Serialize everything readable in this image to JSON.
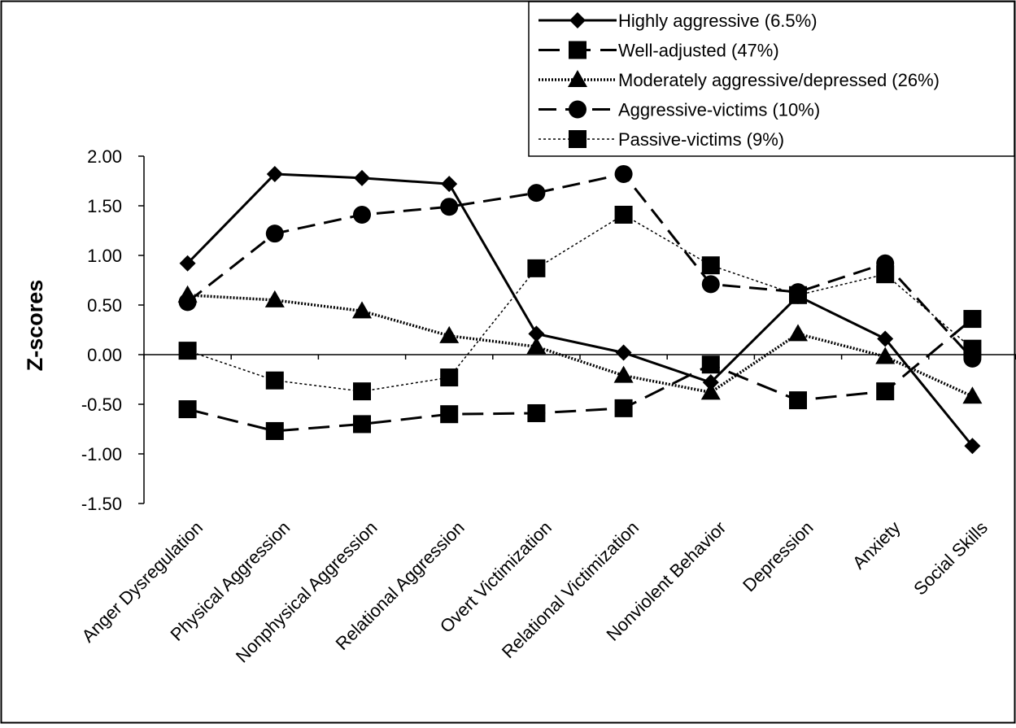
{
  "chart_data": {
    "type": "line",
    "title": "",
    "xlabel": "",
    "ylabel": "Z-scores",
    "ylim": [
      -1.5,
      2.0
    ],
    "y_ticks": [
      "2.00",
      "1.50",
      "1.00",
      "0.50",
      "0.00",
      "-0.50",
      "-1.00",
      "-1.50"
    ],
    "grid": false,
    "legend_position": "top-right",
    "categories": [
      "Anger Dysregulation",
      "Physical Aggression",
      "Nonphysical Aggression",
      "Relational Aggression",
      "Overt Victimization",
      "Relational Victimization",
      "Nonviolent Behavior",
      "Depression",
      "Anxiety",
      "Social Skills"
    ],
    "series": [
      {
        "name": "Highly aggressive (6.5%)",
        "marker": "diamond",
        "line_style": "solid",
        "values": [
          0.92,
          1.82,
          1.78,
          1.72,
          0.21,
          0.02,
          -0.28,
          0.59,
          0.16,
          -0.92
        ]
      },
      {
        "name": "Well-adjusted (47%)",
        "marker": "square",
        "line_style": "long-dash",
        "values": [
          -0.55,
          -0.77,
          -0.7,
          -0.6,
          -0.59,
          -0.54,
          -0.1,
          -0.46,
          -0.37,
          0.36
        ]
      },
      {
        "name": "Moderately aggressive/depressed (26%)",
        "marker": "triangle",
        "line_style": "dotted",
        "values": [
          0.6,
          0.55,
          0.44,
          0.19,
          0.08,
          -0.21,
          -0.38,
          0.21,
          -0.02,
          -0.42
        ]
      },
      {
        "name": "Aggressive-victims (10%)",
        "marker": "circle",
        "line_style": "dash",
        "values": [
          0.53,
          1.22,
          1.41,
          1.49,
          1.63,
          1.82,
          0.71,
          0.63,
          0.92,
          -0.04
        ]
      },
      {
        "name": "Passive-victims (9%)",
        "marker": "square",
        "line_style": "dash-dot",
        "values": [
          0.04,
          -0.26,
          -0.37,
          -0.23,
          0.87,
          1.41,
          0.9,
          0.6,
          0.81,
          0.06
        ]
      }
    ]
  }
}
